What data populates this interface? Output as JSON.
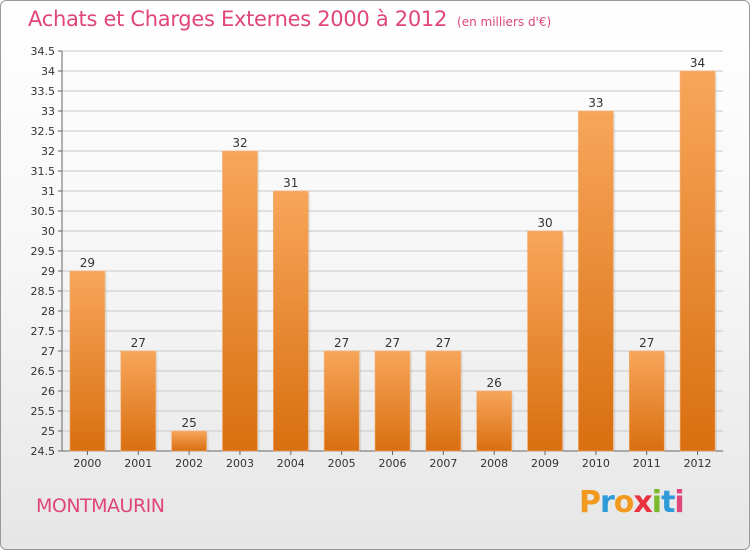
{
  "title": "Achats et Charges Externes 2000 à 2012",
  "unit_label": "(en milliers d'€)",
  "commune": "MONTMAURIN",
  "brand": {
    "letters": [
      "P",
      "r",
      "o",
      "x",
      "i",
      "t",
      "i"
    ],
    "colors": [
      "#f29a1f",
      "#2e9ad8",
      "#f29a1f",
      "#e8323f",
      "#7ab929",
      "#2e9ad8",
      "#e0457b"
    ]
  },
  "colors": {
    "accent": "#e0457b",
    "bar_top": "#f7a65a",
    "bar_bottom": "#d96f10",
    "axis": "#666666",
    "grid": "#c8c8c8"
  },
  "chart_data": {
    "type": "bar",
    "categories": [
      "2000",
      "2001",
      "2002",
      "2003",
      "2004",
      "2005",
      "2006",
      "2007",
      "2008",
      "2009",
      "2010",
      "2011",
      "2012"
    ],
    "values": [
      29,
      27,
      25,
      32,
      31,
      27,
      27,
      27,
      26,
      30,
      33,
      27,
      34
    ],
    "data_labels": [
      "29",
      "27",
      "25",
      "32",
      "31",
      "27",
      "27",
      "27",
      "26",
      "30",
      "33",
      "27",
      "34"
    ],
    "ylim": [
      24.5,
      34.5
    ],
    "yticks": [
      "24.5",
      "25",
      "25.5",
      "26",
      "26.5",
      "27",
      "27.5",
      "28",
      "28.5",
      "29",
      "29.5",
      "30",
      "30.5",
      "31",
      "31.5",
      "32",
      "32.5",
      "33",
      "33.5",
      "34",
      "34.5"
    ],
    "grid": true,
    "title": "Achats et Charges Externes 2000 à 2012",
    "xlabel": "",
    "ylabel": ""
  }
}
